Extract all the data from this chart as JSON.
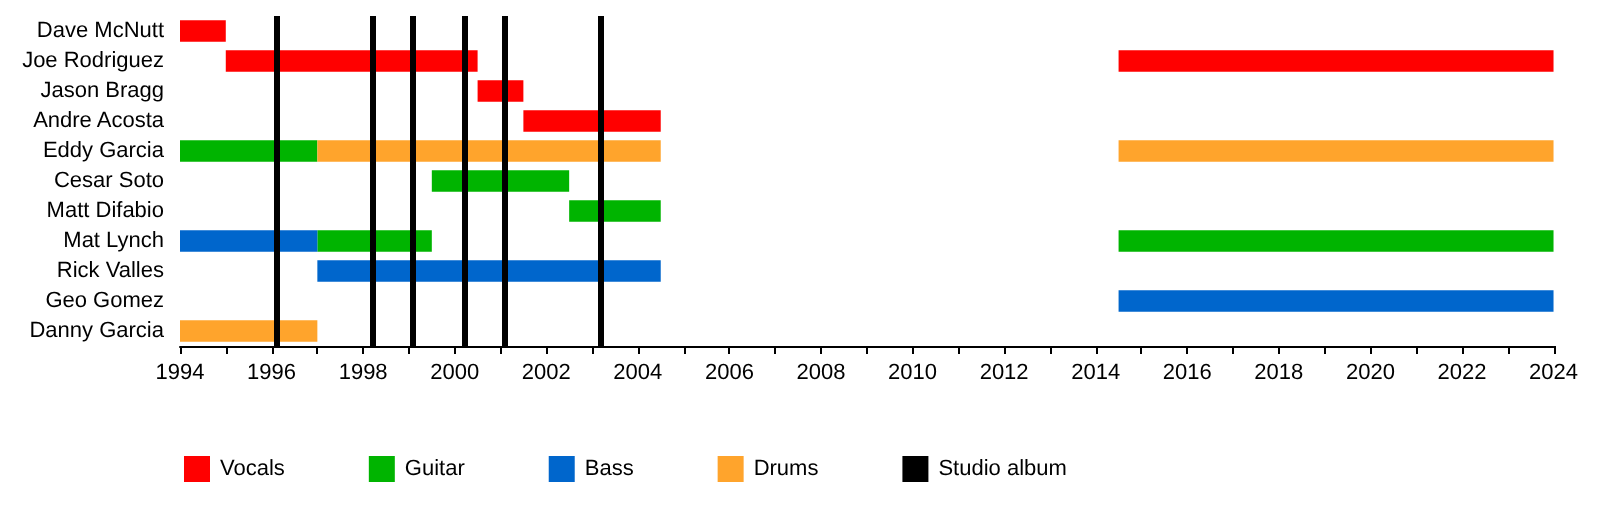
{
  "chart_data": {
    "type": "bar",
    "orientation": "horizontal",
    "categories": [
      "Dave McNutt",
      "Joe Rodriguez",
      "Jason Bragg",
      "Andre Acosta",
      "Eddy Garcia",
      "Cesar Soto",
      "Matt Difabio",
      "Mat Lynch",
      "Rick Valles",
      "Geo Gomez",
      "Danny Garcia"
    ],
    "series": [
      {
        "name": "Vocals",
        "color": "#ff0000",
        "base": [
          1994,
          1995,
          2000.5,
          2001.5,
          null,
          null,
          null,
          null,
          null,
          null,
          null
        ],
        "values": [
          1,
          5.5,
          1,
          3,
          null,
          null,
          null,
          null,
          null,
          null,
          null
        ]
      },
      {
        "color": "#ff0000",
        "base": [
          null,
          2014.5,
          null,
          null,
          null,
          null,
          null,
          null,
          null,
          null,
          null
        ],
        "values": [
          null,
          9.5,
          null,
          null,
          null,
          null,
          null,
          null,
          null,
          null,
          null
        ]
      },
      {
        "name": "Guitar",
        "color": "#00b400",
        "base": [
          null,
          null,
          null,
          null,
          1994,
          1999.5,
          2002.5,
          1997,
          null,
          null,
          null
        ],
        "values": [
          null,
          null,
          null,
          null,
          3,
          3,
          2,
          2.5,
          null,
          null,
          null
        ]
      },
      {
        "color": "#00b400",
        "base": [
          null,
          null,
          null,
          null,
          null,
          null,
          null,
          2014.5,
          null,
          null,
          null
        ],
        "values": [
          null,
          null,
          null,
          null,
          null,
          null,
          null,
          9.5,
          null,
          null,
          null
        ]
      },
      {
        "name": "Bass",
        "color": "#0066cc",
        "base": [
          null,
          null,
          null,
          null,
          null,
          null,
          null,
          1994,
          1997,
          2014.5,
          null
        ],
        "values": [
          null,
          null,
          null,
          null,
          null,
          null,
          null,
          3,
          7.5,
          9.5,
          null
        ]
      },
      {
        "name": "Drums",
        "color": "#ffa42c",
        "base": [
          null,
          null,
          null,
          null,
          1997,
          null,
          null,
          null,
          null,
          null,
          1994
        ],
        "values": [
          null,
          null,
          null,
          null,
          7.5,
          null,
          null,
          null,
          null,
          null,
          3
        ]
      },
      {
        "color": "#ffa42c",
        "base": [
          null,
          null,
          null,
          null,
          2014.5,
          null,
          null,
          null,
          null,
          null,
          null
        ],
        "values": [
          null,
          null,
          null,
          null,
          9.5,
          null,
          null,
          null,
          null,
          null,
          null
        ]
      }
    ],
    "ref_lines": [
      {
        "axis": "x",
        "value": 1996.1,
        "label": "Studio album",
        "color": "#000000"
      },
      {
        "axis": "x",
        "value": 1998.2,
        "color": "#000000"
      },
      {
        "axis": "x",
        "value": 1999.1,
        "color": "#000000"
      },
      {
        "axis": "x",
        "value": 2000.2,
        "color": "#000000"
      },
      {
        "axis": "x",
        "value": 2001.1,
        "color": "#000000"
      },
      {
        "axis": "x",
        "value": 2003.2,
        "color": "#000000"
      }
    ],
    "xlim": [
      1994,
      2024
    ],
    "xticks": [
      1994,
      {
        "value": 1995,
        "label": null
      },
      1996,
      {
        "value": 1997,
        "label": null
      },
      1998,
      {
        "value": 1999,
        "label": null
      },
      2000,
      {
        "value": 2001,
        "label": null
      },
      2002,
      {
        "value": 2003,
        "label": null
      },
      2004,
      {
        "value": 2005,
        "label": null
      },
      2006,
      {
        "value": 2007,
        "label": null
      },
      2008,
      {
        "value": 2009,
        "label": null
      },
      2010,
      {
        "value": 2011,
        "label": null
      },
      2012,
      {
        "value": 2013,
        "label": null
      },
      2014,
      {
        "value": 2015,
        "label": null
      },
      2016,
      {
        "value": 2017,
        "label": null
      },
      2018,
      {
        "value": 2019,
        "label": null
      },
      2020,
      {
        "value": 2021,
        "label": null
      },
      2022,
      {
        "value": 2023,
        "label": null
      },
      2024
    ],
    "grid": false,
    "legend": "bottom left"
  }
}
